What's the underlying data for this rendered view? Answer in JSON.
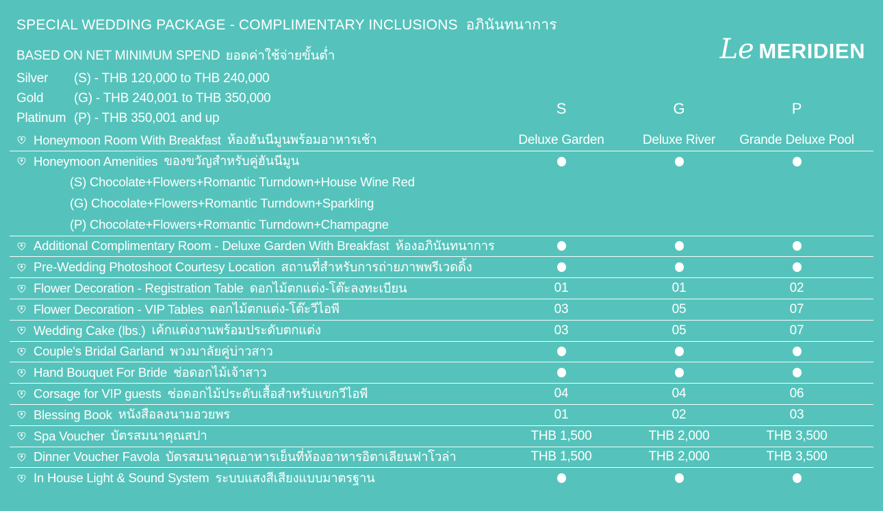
{
  "page": {
    "colors": {
      "background": "#55c3bb",
      "text": "#ffffff",
      "separator": "#ffffff"
    }
  },
  "header": {
    "title_en": "SPECIAL WEDDING PACKAGE - COMPLIMENTARY INCLUSIONS",
    "title_th": "อภินันทนาการ",
    "subtitle_en": "BASED ON NET MINIMUM SPEND",
    "subtitle_th": "ยอดค่าใช้จ่ายขั้นต่ำ",
    "tiers": [
      {
        "name": "Silver",
        "range": "(S) - THB 120,000 to  THB 240,000"
      },
      {
        "name": "Gold",
        "range": "(G) - THB 240,001 to  THB 350,000"
      },
      {
        "name": "Platinum",
        "range": "(P) - THB 350,001 and up"
      }
    ],
    "logo": {
      "script": "Le",
      "word": "MERIDIEN"
    }
  },
  "columns": [
    "S",
    "G",
    "P"
  ],
  "table": {
    "rows": [
      {
        "label_en": "Honeymoon Room With Breakfast",
        "label_th": "ห้องฮันนีมูนพร้อมอาหารเช้า",
        "values": [
          "Deluxe Garden",
          "Deluxe River",
          "Grande Deluxe Pool"
        ]
      },
      {
        "label_en": "Honeymoon Amenities",
        "label_th": "ของขวัญสำหรับคู่ฮันนีมูน",
        "values": [
          "●",
          "●",
          "●"
        ],
        "sublines": [
          "(S) Chocolate+Flowers+Romantic Turndown+House Wine Red",
          "(G) Chocolate+Flowers+Romantic Turndown+Sparkling",
          "(P) Chocolate+Flowers+Romantic Turndown+Champagne"
        ]
      },
      {
        "label_en": "Additional Complimentary Room - Deluxe Garden With Breakfast",
        "label_th": "ห้องอภินันทนาการ",
        "values": [
          "●",
          "●",
          "●"
        ]
      },
      {
        "label_en": "Pre-Wedding Photoshoot Courtesy Location",
        "label_th": "สถานที่สำหรับการถ่ายภาพพรีเวดดิ้ง",
        "values": [
          "●",
          "●",
          "●"
        ]
      },
      {
        "label_en": "Flower Decoration - Registration Table",
        "label_th": "ดอกไม้ตกแต่ง-โต๊ะลงทะเบียน",
        "values": [
          "01",
          "01",
          "02"
        ]
      },
      {
        "label_en": "Flower Decoration - VIP Tables",
        "label_th": "ดอกไม้ตกแต่ง-โต๊ะวีไอพี",
        "values": [
          "03",
          "05",
          "07"
        ]
      },
      {
        "label_en": "Wedding Cake (lbs.)",
        "label_th": "เค้กแต่งงานพร้อมประดับตกแต่ง",
        "values": [
          "03",
          "05",
          "07"
        ]
      },
      {
        "label_en": "Couple's Bridal Garland",
        "label_th": "พวงมาลัยคู่บ่าวสาว",
        "values": [
          "●",
          "●",
          "●"
        ]
      },
      {
        "label_en": "Hand Bouquet For Bride",
        "label_th": "ช่อดอกไม้เจ้าสาว",
        "values": [
          "●",
          "●",
          "●"
        ]
      },
      {
        "label_en": "Corsage for VIP guests",
        "label_th": "ช่อดอกไม้ประดับเสื้อสำหรับแขกวีไอพี",
        "values": [
          "04",
          "04",
          "06"
        ]
      },
      {
        "label_en": "Blessing Book",
        "label_th": "หนังสือลงนามอวยพร",
        "values": [
          "01",
          "02",
          "03"
        ]
      },
      {
        "label_en": "Spa Voucher",
        "label_th": "บัตรสมนาคุณสปา",
        "values": [
          "THB 1,500",
          "THB 2,000",
          "THB 3,500"
        ]
      },
      {
        "label_en": "Dinner Voucher Favola",
        "label_th": "บัตรสมนาคุณอาหารเย็นที่ห้องอาหารอิตาเลียนฟาโวล่า",
        "values": [
          "THB 1,500",
          "THB 2,000",
          "THB 3,500"
        ]
      },
      {
        "label_en": "In House Light & Sound System",
        "label_th": "ระบบแสงสีเสียงแบบมาตรฐาน",
        "values": [
          "●",
          "●",
          "●"
        ]
      }
    ]
  }
}
